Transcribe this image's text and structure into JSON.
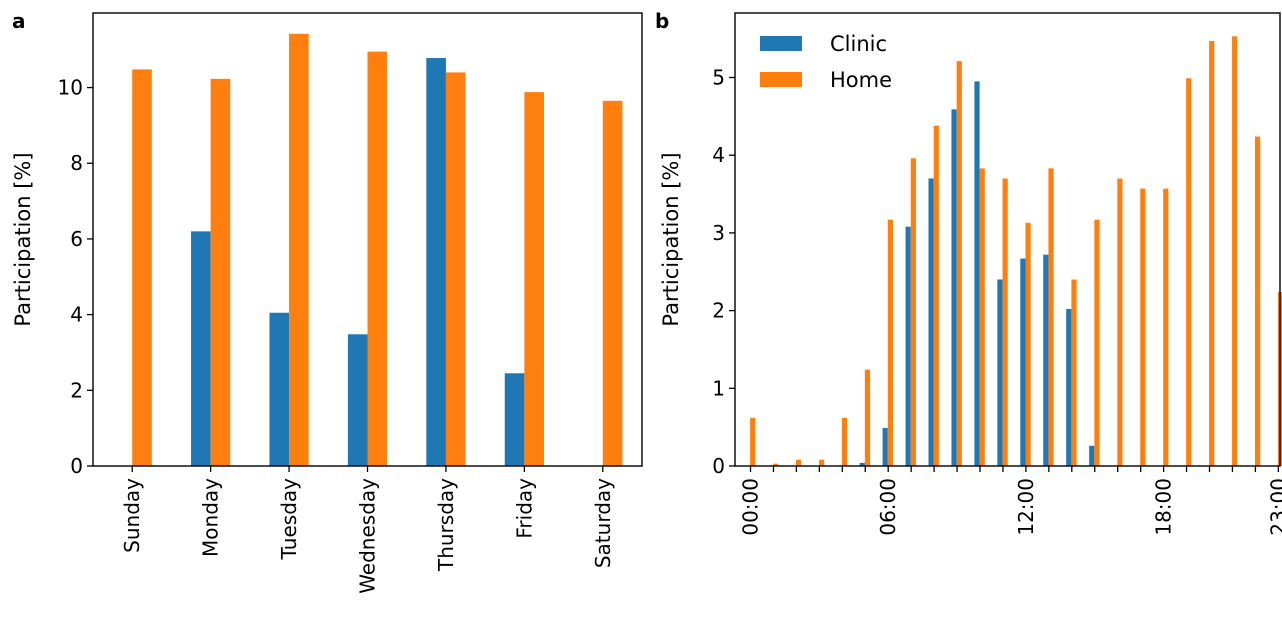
{
  "colors": {
    "clinic": "#1f77b4",
    "home": "#ff7f0e"
  },
  "panels": {
    "a": "a",
    "b": "b"
  },
  "chart_data": [
    {
      "type": "bar",
      "panel": "a",
      "title": "",
      "xlabel": "",
      "ylabel": "Participation [%]",
      "ylim": [
        0,
        11.97
      ],
      "yticks": [
        "0",
        "2",
        "4",
        "6",
        "8",
        "10"
      ],
      "categories": [
        "Sunday",
        "Monday",
        "Tuesday",
        "Wednesday",
        "Thursday",
        "Friday",
        "Saturday"
      ],
      "series": [
        {
          "name": "Clinic",
          "values": [
            0,
            6.2,
            4.05,
            3.48,
            10.78,
            2.45,
            0
          ]
        },
        {
          "name": "Home",
          "values": [
            10.48,
            10.23,
            11.42,
            10.95,
            10.4,
            9.88,
            9.65
          ]
        }
      ],
      "legend": "none",
      "grid": false
    },
    {
      "type": "bar",
      "panel": "b",
      "title": "",
      "xlabel": "",
      "ylabel": "Participation [%]",
      "ylim": [
        0,
        5.83
      ],
      "yticks": [
        "0",
        "1",
        "2",
        "3",
        "4",
        "5"
      ],
      "x": [
        0,
        1,
        2,
        3,
        4,
        5,
        6,
        7,
        8,
        9,
        10,
        11,
        12,
        13,
        14,
        15,
        16,
        17,
        18,
        19,
        20,
        21,
        22,
        23
      ],
      "xticks": [
        {
          "value": 0,
          "label": "00:00"
        },
        {
          "value": 6,
          "label": "06:00"
        },
        {
          "value": 12,
          "label": "12:00"
        },
        {
          "value": 18,
          "label": "18:00"
        },
        {
          "value": 23,
          "label": "23:00"
        }
      ],
      "series": [
        {
          "name": "Clinic",
          "values": [
            0,
            0,
            0,
            0,
            0,
            0.04,
            0.49,
            3.08,
            3.7,
            4.59,
            4.95,
            2.4,
            2.67,
            2.72,
            2.02,
            0.26,
            0,
            0,
            0,
            0,
            0,
            0,
            0,
            0
          ]
        },
        {
          "name": "Home",
          "values": [
            0.62,
            0.03,
            0.08,
            0.08,
            0.62,
            1.24,
            3.17,
            3.96,
            4.38,
            5.21,
            3.83,
            3.7,
            3.13,
            3.83,
            2.4,
            3.17,
            3.7,
            3.57,
            3.57,
            4.99,
            5.47,
            5.53,
            4.24,
            2.24
          ]
        }
      ],
      "legend": "top-left",
      "grid": false
    }
  ]
}
